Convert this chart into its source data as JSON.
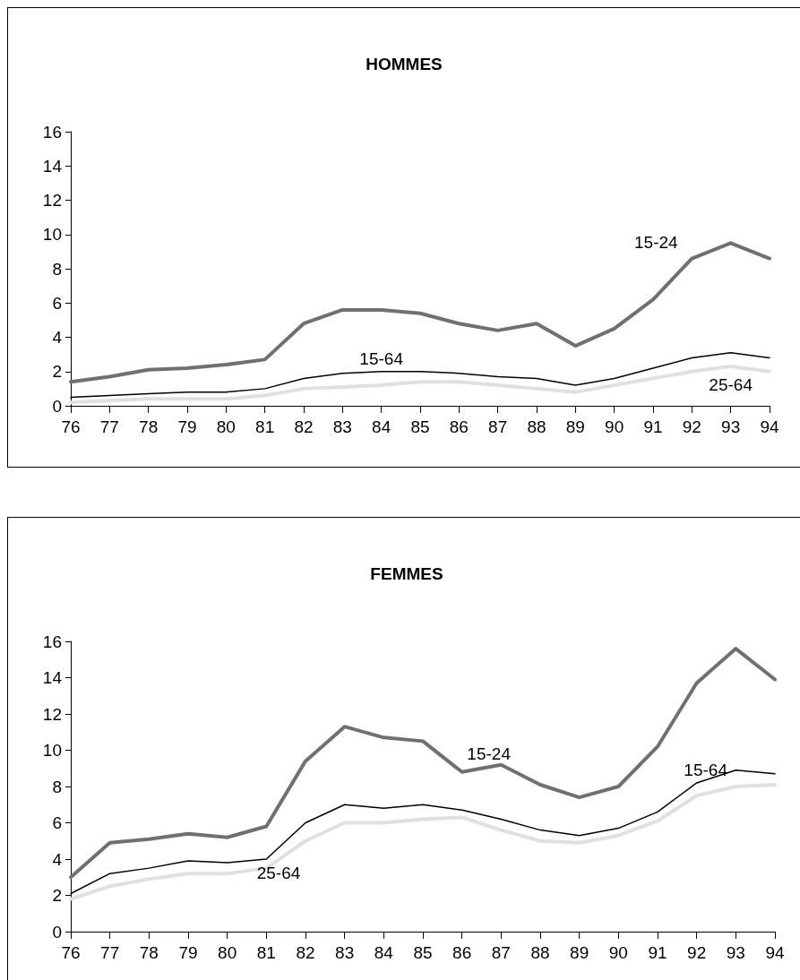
{
  "chart_data": [
    {
      "type": "line",
      "title": "HOMMES",
      "categories": [
        "76",
        "77",
        "78",
        "79",
        "80",
        "81",
        "82",
        "83",
        "84",
        "85",
        "86",
        "87",
        "88",
        "89",
        "90",
        "91",
        "92",
        "93",
        "94"
      ],
      "series": [
        {
          "name": "15-24",
          "color": "#707070",
          "values": [
            1.4,
            1.7,
            2.1,
            2.2,
            2.4,
            2.7,
            4.8,
            5.6,
            5.6,
            5.4,
            4.8,
            4.4,
            4.8,
            3.5,
            4.5,
            6.2,
            8.6,
            9.5,
            8.6
          ]
        },
        {
          "name": "15-64",
          "color": "#000000",
          "values": [
            0.5,
            0.6,
            0.7,
            0.8,
            0.8,
            1.0,
            1.6,
            1.9,
            2.0,
            2.0,
            1.9,
            1.7,
            1.6,
            1.2,
            1.6,
            2.2,
            2.8,
            3.1,
            2.8
          ]
        },
        {
          "name": "25-64",
          "color": "#e0e0e0",
          "values": [
            0.2,
            0.3,
            0.4,
            0.4,
            0.4,
            0.6,
            1.0,
            1.1,
            1.2,
            1.4,
            1.4,
            1.2,
            1.0,
            0.8,
            1.2,
            1.6,
            2.0,
            2.3,
            2.0
          ]
        }
      ],
      "ylim": [
        0,
        16
      ],
      "yticks": [
        0,
        2,
        4,
        6,
        8,
        10,
        12,
        14,
        16
      ],
      "grid": false,
      "legend": false,
      "marker": "none",
      "line_style": "solid"
    },
    {
      "type": "line",
      "title": "FEMMES",
      "categories": [
        "76",
        "77",
        "78",
        "79",
        "80",
        "81",
        "82",
        "83",
        "84",
        "85",
        "86",
        "87",
        "88",
        "89",
        "90",
        "91",
        "92",
        "93",
        "94"
      ],
      "series": [
        {
          "name": "15-24",
          "color": "#707070",
          "values": [
            3.0,
            4.9,
            5.1,
            5.4,
            5.2,
            5.8,
            9.4,
            11.3,
            10.7,
            10.5,
            8.8,
            9.2,
            8.1,
            7.4,
            8.0,
            10.2,
            13.7,
            15.6,
            13.9
          ]
        },
        {
          "name": "15-64",
          "color": "#000000",
          "values": [
            2.1,
            3.2,
            3.5,
            3.9,
            3.8,
            4.0,
            6.0,
            7.0,
            6.8,
            7.0,
            6.7,
            6.2,
            5.6,
            5.3,
            5.7,
            6.6,
            8.2,
            8.9,
            8.7
          ]
        },
        {
          "name": "25-64",
          "color": "#e0e0e0",
          "values": [
            1.8,
            2.5,
            2.9,
            3.2,
            3.2,
            3.5,
            5.0,
            6.0,
            6.0,
            6.2,
            6.3,
            5.6,
            5.0,
            4.9,
            5.3,
            6.1,
            7.5,
            8.0,
            8.1
          ]
        }
      ],
      "ylim": [
        0,
        16
      ],
      "yticks": [
        0,
        2,
        4,
        6,
        8,
        10,
        12,
        14,
        16
      ],
      "grid": false,
      "legend": false,
      "marker": "none",
      "line_style": "solid"
    }
  ]
}
